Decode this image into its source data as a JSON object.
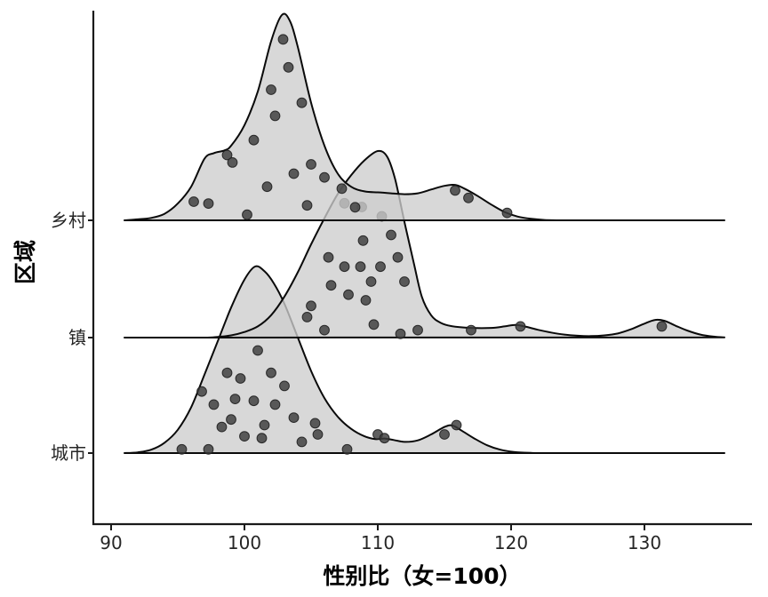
{
  "chart_data": {
    "type": "ridgeline",
    "title": "",
    "xlabel": "性别比（女=100）",
    "ylabel": "区域",
    "categories": [
      "乡村",
      "镇",
      "城市"
    ],
    "x_ticks": [
      90,
      100,
      110,
      120,
      130
    ],
    "xlim": [
      88.7,
      138
    ],
    "grid": false,
    "legend": false,
    "style": {
      "fill_color": "#cdcdcd",
      "fill_opacity": 0.78,
      "stroke_color": "#0a0a0a",
      "stroke_width": 2,
      "point_color": "#3c3c3c",
      "point_opacity": 0.82,
      "point_radius": 5.4,
      "axis_color": "#1a1a1a"
    },
    "series": [
      {
        "name": "乡村",
        "curve": [
          [
            91,
            0
          ],
          [
            92,
            0.005
          ],
          [
            93,
            0.013
          ],
          [
            94,
            0.035
          ],
          [
            95,
            0.09
          ],
          [
            96,
            0.18
          ],
          [
            97,
            0.33
          ],
          [
            97.7,
            0.36
          ],
          [
            98.5,
            0.375
          ],
          [
            99,
            0.4
          ],
          [
            100,
            0.51
          ],
          [
            101,
            0.69
          ],
          [
            102,
            0.96
          ],
          [
            102.8,
            1.1
          ],
          [
            103.4,
            1.07
          ],
          [
            104,
            0.93
          ],
          [
            105,
            0.63
          ],
          [
            106,
            0.4
          ],
          [
            107,
            0.25
          ],
          [
            108,
            0.18
          ],
          [
            109,
            0.155
          ],
          [
            110,
            0.15
          ],
          [
            111,
            0.145
          ],
          [
            112,
            0.14
          ],
          [
            113,
            0.145
          ],
          [
            114,
            0.165
          ],
          [
            115,
            0.185
          ],
          [
            115.8,
            0.19
          ],
          [
            116.5,
            0.17
          ],
          [
            117.5,
            0.13
          ],
          [
            118.5,
            0.085
          ],
          [
            119.5,
            0.045
          ],
          [
            120.5,
            0.02
          ],
          [
            121.5,
            0.008
          ],
          [
            122.5,
            0.002
          ],
          [
            124,
            0
          ],
          [
            128,
            0
          ],
          [
            132,
            0
          ],
          [
            136,
            0
          ]
        ],
        "points": [
          [
            102.9,
            0.97
          ],
          [
            103.3,
            0.82
          ],
          [
            102.3,
            0.56
          ],
          [
            104.3,
            0.63
          ],
          [
            101.7,
            0.18
          ],
          [
            98.7,
            0.35
          ],
          [
            99.1,
            0.31
          ],
          [
            97.3,
            0.09
          ],
          [
            100.2,
            0.03
          ],
          [
            105.0,
            0.3
          ],
          [
            106.0,
            0.23
          ],
          [
            103.7,
            0.25
          ],
          [
            104.7,
            0.08
          ],
          [
            108.3,
            0.07
          ],
          [
            115.8,
            0.16
          ],
          [
            116.8,
            0.12
          ],
          [
            119.7,
            0.04
          ],
          [
            107.3,
            0.17
          ],
          [
            96.2,
            0.1
          ],
          [
            100.7,
            0.43
          ],
          [
            102.0,
            0.7
          ]
        ]
      },
      {
        "name": "镇",
        "curve": [
          [
            91,
            0
          ],
          [
            94,
            0
          ],
          [
            97,
            0
          ],
          [
            98,
            0.004
          ],
          [
            99,
            0.012
          ],
          [
            100,
            0.03
          ],
          [
            101,
            0.06
          ],
          [
            102,
            0.12
          ],
          [
            103,
            0.22
          ],
          [
            104,
            0.35
          ],
          [
            105,
            0.5
          ],
          [
            106,
            0.64
          ],
          [
            107,
            0.77
          ],
          [
            108,
            0.87
          ],
          [
            109,
            0.95
          ],
          [
            110,
            1.0
          ],
          [
            110.7,
            0.97
          ],
          [
            111.3,
            0.85
          ],
          [
            112,
            0.62
          ],
          [
            112.7,
            0.4
          ],
          [
            113.3,
            0.22
          ],
          [
            114,
            0.12
          ],
          [
            114.7,
            0.08
          ],
          [
            115.5,
            0.062
          ],
          [
            117,
            0.052
          ],
          [
            118.5,
            0.052
          ],
          [
            119.5,
            0.06
          ],
          [
            120.3,
            0.068
          ],
          [
            121,
            0.06
          ],
          [
            122,
            0.042
          ],
          [
            123,
            0.027
          ],
          [
            124,
            0.016
          ],
          [
            125,
            0.01
          ],
          [
            126,
            0.008
          ],
          [
            127,
            0.012
          ],
          [
            128,
            0.022
          ],
          [
            129,
            0.045
          ],
          [
            130,
            0.075
          ],
          [
            130.8,
            0.095
          ],
          [
            131.5,
            0.09
          ],
          [
            132.3,
            0.065
          ],
          [
            133.2,
            0.038
          ],
          [
            134.2,
            0.016
          ],
          [
            135.2,
            0.005
          ],
          [
            136,
            0.001
          ]
        ],
        "points": [
          [
            107.5,
            0.72
          ],
          [
            108.8,
            0.7
          ],
          [
            110.3,
            0.65
          ],
          [
            106.3,
            0.43
          ],
          [
            107.5,
            0.38
          ],
          [
            108.7,
            0.38
          ],
          [
            110.2,
            0.38
          ],
          [
            112.0,
            0.3
          ],
          [
            106.5,
            0.28
          ],
          [
            105.0,
            0.17
          ],
          [
            107.8,
            0.23
          ],
          [
            109.1,
            0.2
          ],
          [
            104.7,
            0.11
          ],
          [
            106.0,
            0.04
          ],
          [
            109.7,
            0.07
          ],
          [
            111.7,
            0.02
          ],
          [
            113.0,
            0.04
          ],
          [
            117.0,
            0.04
          ],
          [
            120.7,
            0.06
          ],
          [
            131.3,
            0.06
          ],
          [
            108.9,
            0.52
          ],
          [
            111.0,
            0.55
          ],
          [
            111.5,
            0.43
          ],
          [
            109.5,
            0.3
          ]
        ]
      },
      {
        "name": "城市",
        "curve": [
          [
            91,
            0
          ],
          [
            92,
            0.004
          ],
          [
            93,
            0.018
          ],
          [
            94,
            0.055
          ],
          [
            95,
            0.125
          ],
          [
            96,
            0.245
          ],
          [
            97,
            0.42
          ],
          [
            98,
            0.6
          ],
          [
            99,
            0.78
          ],
          [
            100,
            0.93
          ],
          [
            100.8,
            1.0
          ],
          [
            101.5,
            0.975
          ],
          [
            102.2,
            0.91
          ],
          [
            103,
            0.8
          ],
          [
            104,
            0.62
          ],
          [
            105,
            0.44
          ],
          [
            106,
            0.295
          ],
          [
            107,
            0.195
          ],
          [
            108,
            0.13
          ],
          [
            109,
            0.09
          ],
          [
            109.8,
            0.075
          ],
          [
            110.5,
            0.078
          ],
          [
            111.2,
            0.07
          ],
          [
            112,
            0.06
          ],
          [
            113,
            0.068
          ],
          [
            114,
            0.1
          ],
          [
            115,
            0.14
          ],
          [
            115.6,
            0.148
          ],
          [
            116.3,
            0.12
          ],
          [
            117.2,
            0.08
          ],
          [
            118.2,
            0.042
          ],
          [
            119.2,
            0.018
          ],
          [
            120.2,
            0.006
          ],
          [
            121.5,
            0.001
          ],
          [
            123,
            0
          ],
          [
            128,
            0
          ],
          [
            132,
            0
          ],
          [
            136,
            0
          ]
        ],
        "points": [
          [
            101.0,
            0.55
          ],
          [
            98.7,
            0.43
          ],
          [
            99.7,
            0.4
          ],
          [
            102.0,
            0.43
          ],
          [
            103.0,
            0.36
          ],
          [
            97.7,
            0.26
          ],
          [
            99.3,
            0.29
          ],
          [
            100.7,
            0.28
          ],
          [
            102.3,
            0.26
          ],
          [
            98.3,
            0.14
          ],
          [
            101.5,
            0.15
          ],
          [
            103.7,
            0.19
          ],
          [
            105.3,
            0.16
          ],
          [
            105.5,
            0.1
          ],
          [
            101.3,
            0.08
          ],
          [
            100.0,
            0.09
          ],
          [
            97.3,
            0.02
          ],
          [
            95.3,
            0.02
          ],
          [
            107.7,
            0.02
          ],
          [
            110.0,
            0.1
          ],
          [
            110.5,
            0.08
          ],
          [
            115.0,
            0.1
          ],
          [
            115.9,
            0.15
          ],
          [
            104.3,
            0.06
          ],
          [
            99.0,
            0.18
          ],
          [
            96.8,
            0.33
          ]
        ]
      }
    ]
  }
}
